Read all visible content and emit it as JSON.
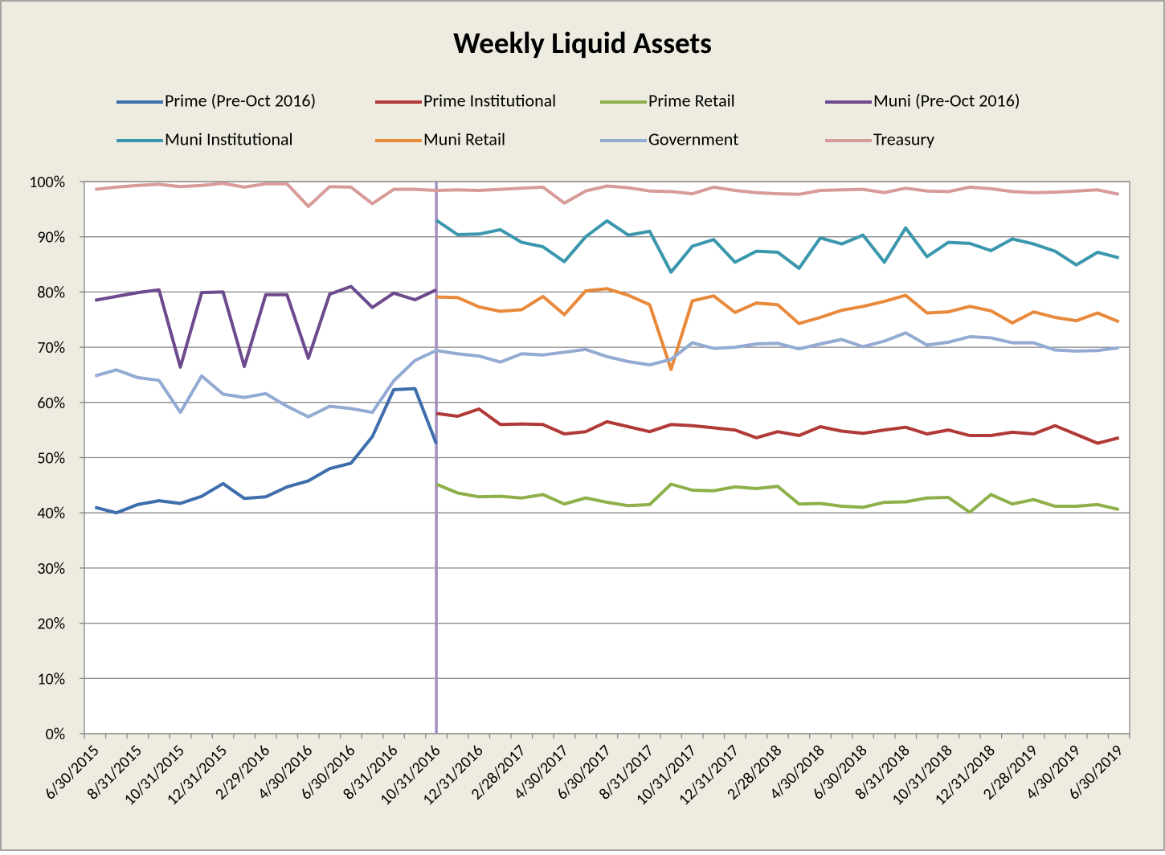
{
  "chart_data": {
    "type": "line",
    "title": "Weekly Liquid Assets",
    "categories": [
      "6/30/2015",
      null,
      "8/31/2015",
      null,
      "10/31/2015",
      null,
      "12/31/2015",
      null,
      "2/29/2016",
      null,
      "4/30/2016",
      null,
      "6/30/2016",
      null,
      "8/31/2016",
      null,
      "10/31/2016",
      null,
      "12/31/2016",
      null,
      "2/28/2017",
      null,
      "4/30/2017",
      null,
      "6/30/2017",
      null,
      "8/31/2017",
      null,
      "10/31/2017",
      null,
      "12/31/2017",
      null,
      "2/28/2018",
      null,
      "4/30/2018",
      null,
      "6/30/2018",
      null,
      "8/31/2018",
      null,
      "10/31/2018",
      null,
      "12/31/2018",
      null,
      "2/28/2019",
      null,
      "4/30/2019",
      null,
      "6/30/2019"
    ],
    "ylim": [
      0,
      100
    ],
    "yticks": [
      {
        "value": 0,
        "label": "0%"
      },
      {
        "value": 10,
        "label": "10%"
      },
      {
        "value": 20,
        "label": "20%"
      },
      {
        "value": 30,
        "label": "30%"
      },
      {
        "value": 40,
        "label": "40%"
      },
      {
        "value": 50,
        "label": "50%"
      },
      {
        "value": 60,
        "label": "60%"
      },
      {
        "value": 70,
        "label": "70%"
      },
      {
        "value": 80,
        "label": "80%"
      },
      {
        "value": 90,
        "label": "90%"
      },
      {
        "value": 100,
        "label": "100%"
      }
    ],
    "grid": true,
    "series": [
      {
        "name": "Prime (Pre-Oct 2016)",
        "color": "#3e6eab",
        "values": [
          41,
          40,
          41.5,
          42.2,
          41.7,
          43,
          45.3,
          42.6,
          42.9,
          44.7,
          45.8,
          48,
          49,
          53.8,
          62.3,
          62.5,
          52.5,
          null,
          null,
          null,
          null,
          null,
          null,
          null,
          null,
          null,
          null,
          null,
          null,
          null,
          null,
          null,
          null,
          null,
          null,
          null,
          null,
          null,
          null,
          null,
          null,
          null,
          null,
          null,
          null,
          null,
          null,
          null,
          null
        ]
      },
      {
        "name": "Prime Institutional",
        "color": "#b03a37",
        "values": [
          null,
          null,
          null,
          null,
          null,
          null,
          null,
          null,
          null,
          null,
          null,
          null,
          null,
          null,
          null,
          null,
          58,
          57.5,
          58.8,
          56,
          56.1,
          56,
          54.3,
          54.7,
          56.5,
          55.6,
          54.7,
          56,
          55.8,
          55.4,
          55,
          53.6,
          54.7,
          54,
          55.6,
          54.8,
          54.4,
          55,
          55.5,
          54.3,
          55,
          54,
          54,
          54.6,
          54.3,
          55.8,
          54.2,
          52.6,
          53.6
        ]
      },
      {
        "name": "Prime Retail",
        "color": "#8db04a",
        "values": [
          null,
          null,
          null,
          null,
          null,
          null,
          null,
          null,
          null,
          null,
          null,
          null,
          null,
          null,
          null,
          null,
          45.2,
          43.6,
          42.9,
          43,
          42.7,
          43.3,
          41.6,
          42.7,
          41.9,
          41.3,
          41.5,
          45.2,
          44.1,
          44,
          44.7,
          44.4,
          44.8,
          41.6,
          41.7,
          41.2,
          41,
          41.9,
          42,
          42.7,
          42.8,
          40.1,
          43.3,
          41.6,
          42.4,
          41.2,
          41.2,
          41.5,
          40.6
        ]
      },
      {
        "name": "Muni (Pre-Oct 2016)",
        "color": "#6d4a8d",
        "values": [
          78.5,
          79.2,
          79.9,
          80.4,
          66.4,
          79.9,
          80,
          66.5,
          79.5,
          79.5,
          68,
          79.6,
          81,
          77.2,
          79.8,
          78.6,
          80.4,
          null,
          null,
          null,
          null,
          null,
          null,
          null,
          null,
          null,
          null,
          null,
          null,
          null,
          null,
          null,
          null,
          null,
          null,
          null,
          null,
          null,
          null,
          null,
          null,
          null,
          null,
          null,
          null,
          null,
          null,
          null,
          null
        ]
      },
      {
        "name": "Muni Institutional",
        "color": "#3a97ad",
        "values": [
          null,
          null,
          null,
          null,
          null,
          null,
          null,
          null,
          null,
          null,
          null,
          null,
          null,
          null,
          null,
          null,
          93,
          90.4,
          90.5,
          91.3,
          89,
          88.2,
          85.5,
          90,
          92.9,
          90.3,
          91,
          83.6,
          88.3,
          89.5,
          85.4,
          87.4,
          87.2,
          84.3,
          89.8,
          88.7,
          90.3,
          85.4,
          91.6,
          86.4,
          89,
          88.8,
          87.5,
          89.6,
          88.7,
          87.4,
          84.9,
          87.2,
          86.2
        ]
      },
      {
        "name": "Muni Retail",
        "color": "#e8893b",
        "values": [
          null,
          null,
          null,
          null,
          null,
          null,
          null,
          null,
          null,
          null,
          null,
          null,
          null,
          null,
          null,
          null,
          79.1,
          79,
          77.3,
          76.5,
          76.8,
          79.2,
          75.9,
          80.2,
          80.6,
          79.4,
          77.7,
          66,
          78.4,
          79.3,
          76.3,
          78,
          77.7,
          74.3,
          75.4,
          76.7,
          77.4,
          78.3,
          79.4,
          76.2,
          76.4,
          77.4,
          76.6,
          74.4,
          76.4,
          75.4,
          74.8,
          76.2,
          74.6
        ]
      },
      {
        "name": "Government",
        "color": "#93abd3",
        "values": [
          64.8,
          65.9,
          64.5,
          64,
          58.2,
          64.8,
          61.5,
          60.9,
          61.6,
          59.3,
          57.4,
          59.3,
          58.9,
          58.2,
          63.9,
          67.6,
          69.4,
          68.8,
          68.4,
          67.3,
          68.8,
          68.6,
          69.1,
          69.6,
          68.3,
          67.4,
          66.8,
          67.8,
          70.8,
          69.8,
          70,
          70.6,
          70.7,
          69.7,
          70.6,
          71.4,
          70.1,
          71.1,
          72.6,
          70.4,
          70.9,
          71.9,
          71.7,
          70.8,
          70.8,
          69.5,
          69.3,
          69.4,
          69.9
        ]
      },
      {
        "name": "Treasury",
        "color": "#d79b9a",
        "values": [
          98.6,
          99,
          99.3,
          99.5,
          99.1,
          99.3,
          99.7,
          99,
          99.6,
          99.6,
          95.5,
          99.1,
          99,
          96,
          98.6,
          98.6,
          98.4,
          98.5,
          98.4,
          98.6,
          98.8,
          99,
          96.1,
          98.3,
          99.2,
          98.9,
          98.3,
          98.2,
          97.8,
          99,
          98.4,
          98,
          97.8,
          97.7,
          98.4,
          98.5,
          98.6,
          98,
          98.8,
          98.3,
          98.2,
          99,
          98.7,
          98.2,
          98,
          98.1,
          98.3,
          98.5,
          97.7
        ]
      }
    ]
  }
}
